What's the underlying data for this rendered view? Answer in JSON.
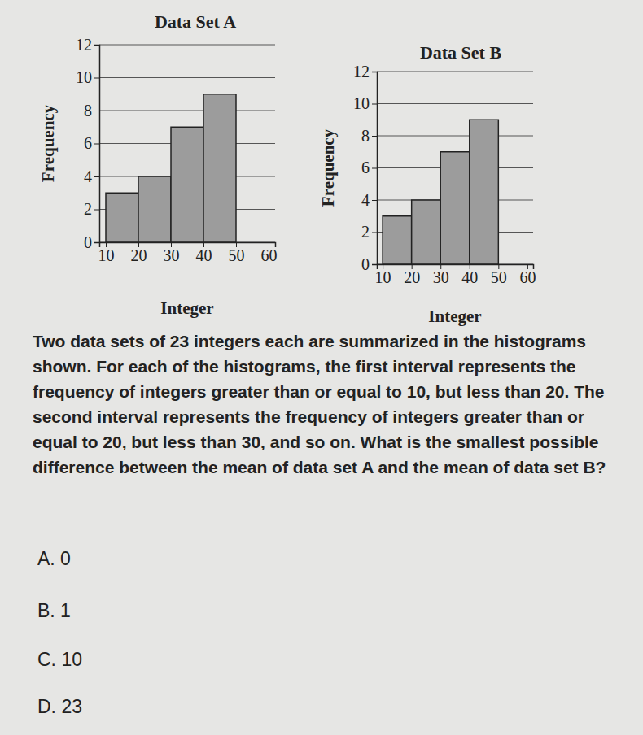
{
  "chart_data": [
    {
      "type": "histogram",
      "title": "Data Set A",
      "x_label": "Integer",
      "y_label": "Frequency",
      "bins": [
        10,
        20,
        30,
        40,
        50,
        60
      ],
      "counts": [
        3,
        4,
        7,
        9,
        0
      ],
      "color": "#9c9c9c",
      "xlim": [
        8,
        62
      ],
      "ylim": [
        0,
        12
      ],
      "xticks": [
        10,
        20,
        30,
        40,
        50,
        60
      ],
      "yticks": [
        0,
        2,
        4,
        6,
        8,
        10,
        12
      ],
      "grid": true
    },
    {
      "type": "histogram",
      "title": "Data Set B",
      "x_label": "Integer",
      "y_label": "Frequency",
      "bins": [
        10,
        20,
        30,
        40,
        50,
        60
      ],
      "counts": [
        3,
        4,
        7,
        9,
        0
      ],
      "color": "#9c9c9c",
      "xlim": [
        8,
        62
      ],
      "ylim": [
        0,
        12
      ],
      "xticks": [
        10,
        20,
        30,
        40,
        50,
        60
      ],
      "yticks": [
        0,
        2,
        4,
        6,
        8,
        10,
        12
      ],
      "grid": true
    }
  ],
  "question": "Two data sets of 23 integers each are summarized in the histograms shown. For each of the histograms, the first interval represents the frequency of integers greater than or equal to 10, but less than 20. The second interval represents the frequency of integers greater than or equal to 20, but less than 30, and so on. What is the smallest possible difference between the mean of data set A and the mean of data set B?",
  "options": [
    "A. 0",
    "B. 1",
    "C. 10",
    "D. 23"
  ]
}
